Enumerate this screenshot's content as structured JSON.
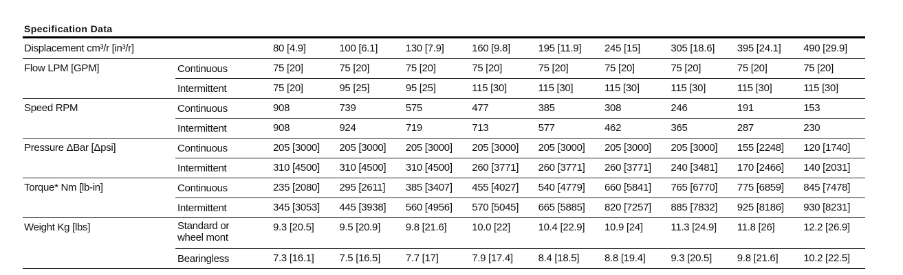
{
  "title": "Specification Data",
  "groups": [
    {
      "label": "Displacement cm³/r [in³/r]",
      "rows": [
        {
          "values": [
            "80 [4.9]",
            "100 [6.1]",
            "130 [7.9]",
            "160 [9.8]",
            "195 [11.9]",
            "245 [15]",
            "305 [18.6]",
            "395 [24.1]",
            "490 [29.9]"
          ]
        }
      ]
    },
    {
      "label": "Flow LPM [GPM]",
      "rows": [
        {
          "sub": "Continuous",
          "values": [
            "75 [20]",
            "75 [20]",
            "75 [20]",
            "75 [20]",
            "75 [20]",
            "75 [20]",
            "75 [20]",
            "75 [20]",
            "75 [20]"
          ]
        },
        {
          "sub": "Intermittent",
          "values": [
            "75 [20]",
            "95 [25]",
            "95 [25]",
            "115 [30]",
            "115 [30]",
            "115 [30]",
            "115 [30]",
            "115 [30]",
            "115 [30]"
          ]
        }
      ]
    },
    {
      "label": "Speed RPM",
      "rows": [
        {
          "sub": "Continuous",
          "values": [
            "908",
            "739",
            "575",
            "477",
            "385",
            "308",
            "246",
            "191",
            "153"
          ]
        },
        {
          "sub": "Intermittent",
          "values": [
            "908",
            "924",
            "719",
            "713",
            "577",
            "462",
            "365",
            "287",
            "230"
          ]
        }
      ]
    },
    {
      "label": "Pressure ΔBar [Δpsi]",
      "rows": [
        {
          "sub": "Continuous",
          "values": [
            "205 [3000]",
            "205 [3000]",
            "205 [3000]",
            "205 [3000]",
            "205 [3000]",
            "205 [3000]",
            "205 [3000]",
            "155 [2248]",
            "120 [1740]"
          ]
        },
        {
          "sub": "Intermittent",
          "values": [
            "310 [4500]",
            "310 [4500]",
            "310 [4500]",
            "260 [3771]",
            "260 [3771]",
            "260 [3771]",
            "240 [3481]",
            "170 [2466]",
            "140 [2031]"
          ]
        }
      ]
    },
    {
      "label": "Torque* Nm [lb-in]",
      "rows": [
        {
          "sub": "Continuous",
          "values": [
            "235 [2080]",
            "295 [2611]",
            "385 [3407]",
            "455 [4027]",
            "540 [4779]",
            "660 [5841]",
            "765 [6770]",
            "775 [6859]",
            "845 [7478]"
          ]
        },
        {
          "sub": "Intermittent",
          "values": [
            "345 [3053]",
            "445 [3938]",
            "560 [4956]",
            "570 [5045]",
            "665 [5885]",
            "820 [7257]",
            "885 [7832]",
            "925 [8186]",
            "930 [8231]"
          ]
        }
      ]
    },
    {
      "label": "Weight Kg [lbs]",
      "rows": [
        {
          "sub": "Standard or\nwheel mont",
          "values": [
            "9.3 [20.5]",
            "9.5 [20.9]",
            "9.8 [21.6]",
            "10.0 [22]",
            "10.4 [22.9]",
            "10.9 [24]",
            "11.3 [24.9]",
            "11.8 [26]",
            "12.2 [26.9]"
          ]
        },
        {
          "sub": "Bearingless",
          "values": [
            "7.3 [16.1]",
            "7.5 [16.5]",
            "7.7 [17]",
            "7.9 [17.4]",
            "8.4 [18.5]",
            "8.8 [19.4]",
            "9.3 [20.5]",
            "9.8 [21.6]",
            "10.2 [22.5]"
          ]
        }
      ]
    }
  ]
}
